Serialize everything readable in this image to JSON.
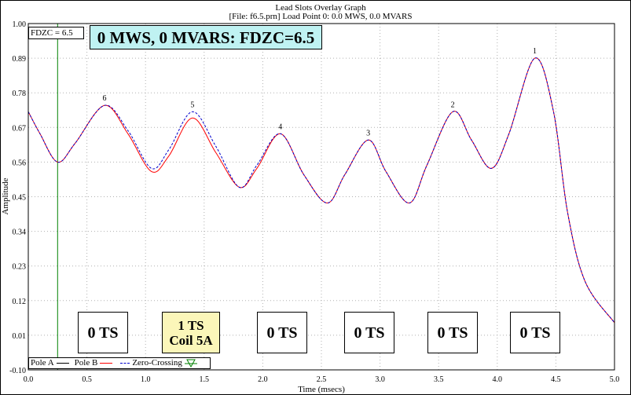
{
  "chart_data": {
    "type": "line",
    "title": "Lead Slots Overlay Graph",
    "subtitle": "[File: f6.5.prn]  Load Point 0:   0.0 MWS,   0.0 MVARS",
    "xlabel": "Time (msecs)",
    "ylabel": "Amplitude",
    "xlim": [
      0.0,
      5.0
    ],
    "ylim": [
      -0.1,
      1.0
    ],
    "x_ticks": [
      "0.0",
      "0.5",
      "1.0",
      "1.5",
      "2.0",
      "2.5",
      "3.0",
      "3.5",
      "4.0",
      "4.5",
      "5.0"
    ],
    "y_ticks": [
      "-0.10",
      "0.01",
      "0.12",
      "0.23",
      "0.34",
      "0.45",
      "0.56",
      "0.67",
      "0.78",
      "0.89",
      "1.00"
    ],
    "grid": true,
    "series": [
      {
        "name": "Pole A",
        "color": "#000000",
        "style": "solid",
        "points": []
      },
      {
        "name": "Pole B",
        "color": "#ff0000",
        "style": "solid",
        "points": [
          [
            0.0,
            0.72
          ],
          [
            0.1,
            0.65
          ],
          [
            0.25,
            0.56
          ],
          [
            0.4,
            0.62
          ],
          [
            0.65,
            0.74
          ],
          [
            0.85,
            0.65
          ],
          [
            1.05,
            0.53
          ],
          [
            1.2,
            0.58
          ],
          [
            1.4,
            0.7
          ],
          [
            1.6,
            0.59
          ],
          [
            1.8,
            0.48
          ],
          [
            1.95,
            0.54
          ],
          [
            2.15,
            0.65
          ],
          [
            2.35,
            0.52
          ],
          [
            2.55,
            0.43
          ],
          [
            2.7,
            0.52
          ],
          [
            2.9,
            0.63
          ],
          [
            3.05,
            0.53
          ],
          [
            3.25,
            0.43
          ],
          [
            3.4,
            0.55
          ],
          [
            3.62,
            0.72
          ],
          [
            3.78,
            0.63
          ],
          [
            3.95,
            0.54
          ],
          [
            4.1,
            0.65
          ],
          [
            4.32,
            0.89
          ],
          [
            4.48,
            0.72
          ],
          [
            4.6,
            0.4
          ],
          [
            4.75,
            0.18
          ],
          [
            5.0,
            0.05
          ]
        ]
      },
      {
        "name": "Zero-Crossing",
        "color": "#0000cc",
        "style": "dashed",
        "points": [
          [
            0.0,
            0.72
          ],
          [
            0.1,
            0.65
          ],
          [
            0.25,
            0.56
          ],
          [
            0.4,
            0.62
          ],
          [
            0.65,
            0.74
          ],
          [
            0.85,
            0.66
          ],
          [
            1.05,
            0.54
          ],
          [
            1.2,
            0.6
          ],
          [
            1.4,
            0.72
          ],
          [
            1.6,
            0.61
          ],
          [
            1.8,
            0.48
          ],
          [
            1.95,
            0.55
          ],
          [
            2.15,
            0.65
          ],
          [
            2.35,
            0.52
          ],
          [
            2.55,
            0.43
          ],
          [
            2.7,
            0.52
          ],
          [
            2.9,
            0.63
          ],
          [
            3.05,
            0.53
          ],
          [
            3.25,
            0.43
          ],
          [
            3.4,
            0.55
          ],
          [
            3.62,
            0.72
          ],
          [
            3.78,
            0.63
          ],
          [
            3.95,
            0.54
          ],
          [
            4.1,
            0.65
          ],
          [
            4.32,
            0.89
          ],
          [
            4.48,
            0.72
          ],
          [
            4.6,
            0.4
          ],
          [
            4.75,
            0.18
          ],
          [
            5.0,
            0.05
          ]
        ]
      }
    ],
    "peaks": [
      {
        "label": "6",
        "x": 0.65,
        "y": 0.74
      },
      {
        "label": "5",
        "x": 1.4,
        "y": 0.72
      },
      {
        "label": "4",
        "x": 2.15,
        "y": 0.65
      },
      {
        "label": "3",
        "x": 2.9,
        "y": 0.63
      },
      {
        "label": "2",
        "x": 3.62,
        "y": 0.72
      },
      {
        "label": "1",
        "x": 4.32,
        "y": 0.89
      }
    ],
    "fdzc_marker_x": 0.25,
    "fdzc_marker_color": "#008000"
  },
  "annotations": {
    "fdzc_label": "FDZC =  6.5",
    "banner": "0 MWS, 0 MVARS: FDZC=6.5",
    "ts_boxes": [
      {
        "line1": "0 TS",
        "line2": ""
      },
      {
        "line1": "1 TS",
        "line2": "Coil 5A"
      },
      {
        "line1": "0 TS",
        "line2": ""
      },
      {
        "line1": "0 TS",
        "line2": ""
      },
      {
        "line1": "0 TS",
        "line2": ""
      },
      {
        "line1": "0 TS",
        "line2": ""
      }
    ]
  },
  "legend": {
    "pole_a": "Pole A",
    "pole_b": "Pole B",
    "zero_crossing": "Zero-Crossing"
  }
}
